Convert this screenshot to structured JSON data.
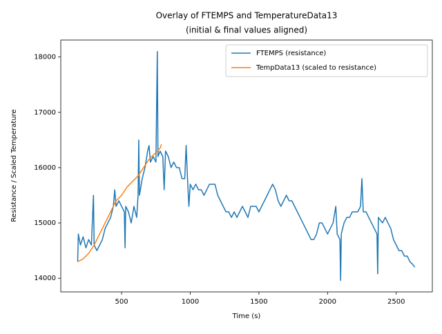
{
  "chart_data": {
    "type": "line",
    "title": "Overlay of FTEMPS and TemperatureData13",
    "subtitle": "(initial & final values aligned)",
    "x_label": "Time (s)",
    "y_label": "Resistance / Scaled Temperature",
    "xlim": [
      57,
      2763
    ],
    "xticks": [
      500,
      1000,
      1500,
      2000,
      2500
    ],
    "ylim": [
      13753,
      18307
    ],
    "yticks": [
      14000,
      15000,
      16000,
      17000,
      18000
    ],
    "grid": false,
    "legend": "upper-right",
    "series": [
      {
        "name": "FTEMPS (resistance)",
        "color": "#1f77b4",
        "x": [
          180,
          185,
          200,
          220,
          240,
          260,
          280,
          295,
          300,
          320,
          340,
          360,
          380,
          400,
          420,
          440,
          450,
          460,
          480,
          500,
          520,
          525,
          530,
          550,
          570,
          590,
          610,
          620,
          625,
          630,
          650,
          670,
          690,
          700,
          710,
          730,
          750,
          760,
          765,
          780,
          800,
          810,
          820,
          840,
          860,
          880,
          900,
          920,
          940,
          960,
          970,
          980,
          990,
          1000,
          1020,
          1040,
          1060,
          1080,
          1100,
          1120,
          1140,
          1160,
          1180,
          1200,
          1220,
          1240,
          1260,
          1280,
          1300,
          1320,
          1340,
          1360,
          1380,
          1400,
          1420,
          1440,
          1460,
          1480,
          1500,
          1520,
          1540,
          1560,
          1580,
          1600,
          1620,
          1640,
          1660,
          1680,
          1700,
          1720,
          1740,
          1760,
          1780,
          1800,
          1820,
          1840,
          1860,
          1880,
          1900,
          1920,
          1940,
          1960,
          1980,
          2000,
          2020,
          2040,
          2060,
          2070,
          2090,
          2095,
          2100,
          2120,
          2140,
          2160,
          2180,
          2200,
          2220,
          2240,
          2250,
          2260,
          2280,
          2300,
          2320,
          2340,
          2360,
          2365,
          2370,
          2400,
          2420,
          2440,
          2460,
          2480,
          2500,
          2520,
          2540,
          2560,
          2580,
          2600,
          2620,
          2635
        ],
        "values": [
          14300,
          14800,
          14600,
          14750,
          14550,
          14700,
          14600,
          15500,
          14600,
          14500,
          14600,
          14700,
          14900,
          15000,
          15100,
          15300,
          15600,
          15300,
          15400,
          15300,
          15200,
          14550,
          15300,
          15200,
          15000,
          15300,
          15100,
          15500,
          16500,
          15500,
          15800,
          16000,
          16300,
          16400,
          16100,
          16200,
          16100,
          18100,
          16200,
          16300,
          16200,
          15600,
          16300,
          16200,
          16000,
          16100,
          16000,
          16000,
          15800,
          15800,
          16400,
          15800,
          15300,
          15700,
          15600,
          15700,
          15600,
          15600,
          15500,
          15600,
          15700,
          15700,
          15700,
          15500,
          15400,
          15300,
          15200,
          15200,
          15100,
          15200,
          15100,
          15200,
          15300,
          15200,
          15100,
          15300,
          15300,
          15300,
          15200,
          15300,
          15400,
          15500,
          15600,
          15700,
          15600,
          15400,
          15300,
          15400,
          15500,
          15400,
          15400,
          15300,
          15200,
          15100,
          15000,
          14900,
          14800,
          14700,
          14700,
          14800,
          15000,
          15000,
          14900,
          14800,
          14900,
          15000,
          15300,
          14800,
          14700,
          13960,
          14800,
          15000,
          15100,
          15100,
          15200,
          15200,
          15200,
          15300,
          15800,
          15200,
          15200,
          15100,
          15000,
          14900,
          14800,
          14080,
          15100,
          15000,
          15100,
          15000,
          14900,
          14700,
          14600,
          14500,
          14500,
          14400,
          14400,
          14300,
          14250,
          14200
        ]
      },
      {
        "name": "TempData13 (scaled to resistance)",
        "color": "#ff7f0e",
        "x": [
          180,
          220,
          260,
          300,
          340,
          380,
          420,
          460,
          500,
          540,
          580,
          620,
          660,
          700,
          740,
          780,
          790
        ],
        "values": [
          14300,
          14350,
          14450,
          14600,
          14800,
          15000,
          15200,
          15400,
          15500,
          15650,
          15750,
          15850,
          16000,
          16150,
          16250,
          16350,
          16420
        ]
      }
    ]
  }
}
